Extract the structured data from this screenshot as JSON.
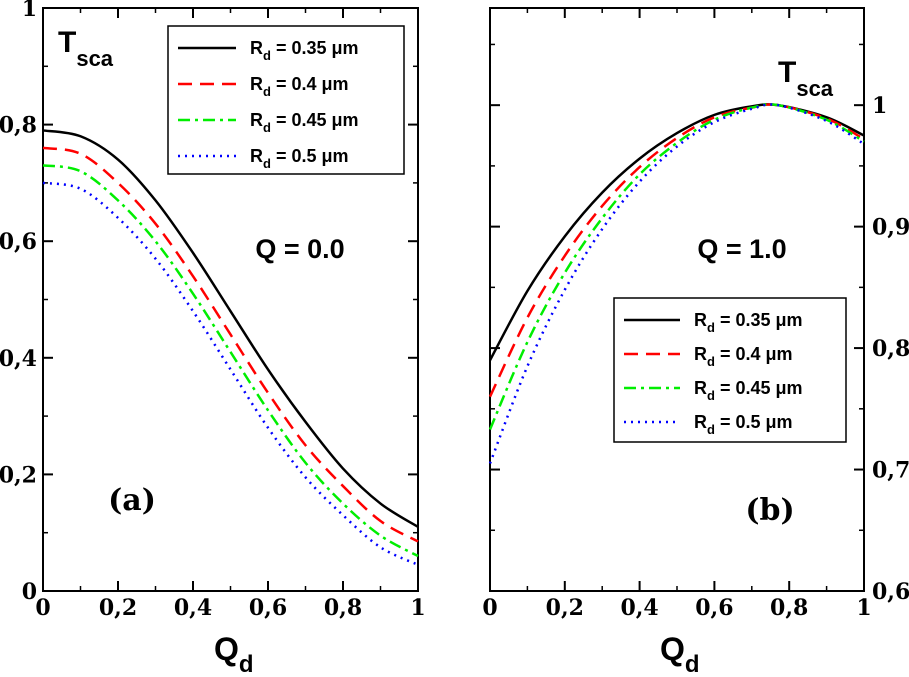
{
  "chart_data": [
    {
      "type": "line",
      "panel_label": "(a)",
      "annotation": "Q = 0.0",
      "ylabel_main": "T",
      "ylabel_sub": "sca",
      "xlabel_main": "Q",
      "xlabel_sub": "d",
      "xlim": [
        0,
        1
      ],
      "ylim": [
        0,
        1
      ],
      "xticks": [
        "0",
        "0,2",
        "0,4",
        "0,6",
        "0,8",
        "1"
      ],
      "yticks": [
        "0",
        "0,2",
        "0,4",
        "0,6",
        "0,8",
        "1"
      ],
      "legend_position": "top-right",
      "series": [
        {
          "name_main": "R",
          "name_sub": "d",
          "name_rest": " = 0.35  μm",
          "color": "#000000",
          "dash": "",
          "x": [
            0,
            0.1,
            0.2,
            0.3,
            0.4,
            0.5,
            0.6,
            0.7,
            0.8,
            0.9,
            1.0
          ],
          "y": [
            0.79,
            0.78,
            0.74,
            0.67,
            0.58,
            0.48,
            0.38,
            0.29,
            0.21,
            0.15,
            0.11
          ]
        },
        {
          "name_main": "R",
          "name_sub": "d",
          "name_rest": " = 0.4 μm",
          "color": "#ff0000",
          "dash": "14,8",
          "x": [
            0,
            0.1,
            0.2,
            0.3,
            0.4,
            0.5,
            0.6,
            0.7,
            0.8,
            0.9,
            1.0
          ],
          "y": [
            0.76,
            0.75,
            0.7,
            0.63,
            0.54,
            0.44,
            0.34,
            0.25,
            0.18,
            0.12,
            0.085
          ]
        },
        {
          "name_main": "R",
          "name_sub": "d",
          "name_rest": " = 0.45 μm",
          "color": "#00ee00",
          "dash": "12,5,3,5",
          "x": [
            0,
            0.1,
            0.2,
            0.3,
            0.4,
            0.5,
            0.6,
            0.7,
            0.8,
            0.9,
            1.0
          ],
          "y": [
            0.73,
            0.72,
            0.67,
            0.6,
            0.51,
            0.41,
            0.31,
            0.22,
            0.15,
            0.095,
            0.06
          ]
        },
        {
          "name_main": "R",
          "name_sub": "d",
          "name_rest": " = 0.5  μm",
          "color": "#0000ff",
          "dash": "2,5",
          "x": [
            0,
            0.1,
            0.2,
            0.3,
            0.4,
            0.5,
            0.6,
            0.7,
            0.8,
            0.9,
            1.0
          ],
          "y": [
            0.7,
            0.69,
            0.64,
            0.57,
            0.48,
            0.38,
            0.28,
            0.195,
            0.13,
            0.075,
            0.045
          ]
        }
      ]
    },
    {
      "type": "line",
      "panel_label": "(b)",
      "annotation": "Q = 1.0",
      "ylabel_main": "T",
      "ylabel_sub": "sca",
      "xlabel_main": "Q",
      "xlabel_sub": "d",
      "xlim": [
        0,
        1
      ],
      "ylim": [
        0.6,
        1.08
      ],
      "xticks": [
        "0",
        "0,2",
        "0,4",
        "0,6",
        "0,8",
        "1"
      ],
      "yticks": [
        "0,6",
        "0,7",
        "0,8",
        "0,9",
        "1"
      ],
      "y_axis_side": "right",
      "legend_position": "center-right",
      "series": [
        {
          "name_main": "R",
          "name_sub": "d",
          "name_rest": " = 0.35 μm",
          "color": "#000000",
          "dash": "",
          "x": [
            0,
            0.1,
            0.2,
            0.3,
            0.4,
            0.5,
            0.6,
            0.7,
            0.77,
            0.9,
            1.0
          ],
          "y": [
            0.79,
            0.847,
            0.892,
            0.928,
            0.956,
            0.977,
            0.992,
            0.999,
            1.0,
            0.99,
            0.975
          ]
        },
        {
          "name_main": "R",
          "name_sub": "d",
          "name_rest": " = 0.4 μm",
          "color": "#ff0000",
          "dash": "14,8",
          "x": [
            0,
            0.1,
            0.2,
            0.3,
            0.4,
            0.5,
            0.6,
            0.7,
            0.77,
            0.9,
            1.0
          ],
          "y": [
            0.76,
            0.825,
            0.876,
            0.917,
            0.949,
            0.973,
            0.99,
            0.998,
            1.0,
            0.989,
            0.972
          ]
        },
        {
          "name_main": "R",
          "name_sub": "d",
          "name_rest": " = 0.45 μm",
          "color": "#00ee00",
          "dash": "12,5,3,5",
          "x": [
            0,
            0.1,
            0.2,
            0.3,
            0.4,
            0.5,
            0.6,
            0.7,
            0.77,
            0.9,
            1.0
          ],
          "y": [
            0.733,
            0.805,
            0.862,
            0.907,
            0.943,
            0.969,
            0.988,
            0.998,
            1.0,
            0.988,
            0.97
          ]
        },
        {
          "name_main": "R",
          "name_sub": "d",
          "name_rest": " = 0.5  μm",
          "color": "#0000ff",
          "dash": "2,5",
          "x": [
            0,
            0.1,
            0.2,
            0.3,
            0.4,
            0.5,
            0.6,
            0.7,
            0.77,
            0.9,
            1.0
          ],
          "y": [
            0.705,
            0.785,
            0.848,
            0.898,
            0.937,
            0.966,
            0.986,
            0.997,
            1.0,
            0.987,
            0.968
          ]
        }
      ]
    }
  ]
}
